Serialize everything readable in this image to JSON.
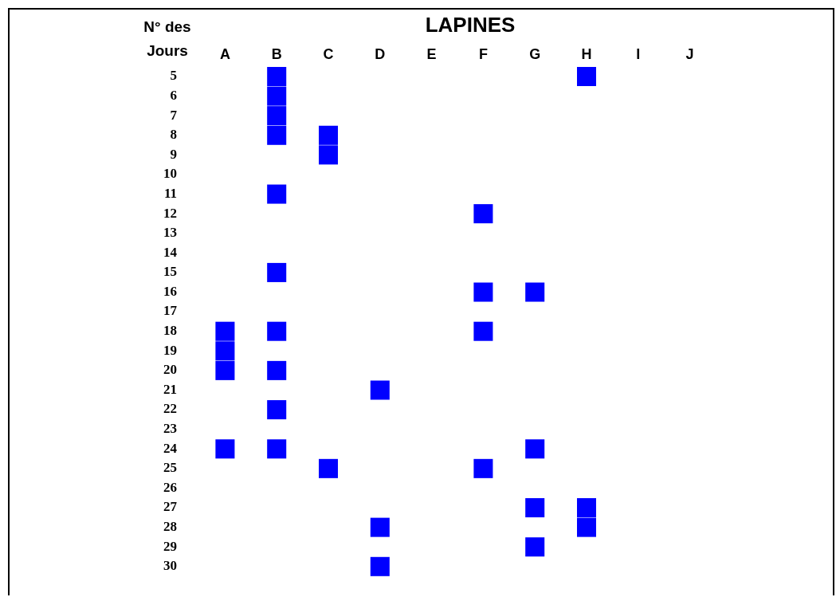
{
  "chart_data": {
    "type": "scatter",
    "title": "LAPINES",
    "ylabel": "N° des Jours",
    "marker": "square",
    "categories": [
      "A",
      "B",
      "C",
      "D",
      "E",
      "F",
      "G",
      "H",
      "I",
      "J"
    ],
    "ylim": [
      30,
      5
    ],
    "yticks": [
      5,
      6,
      7,
      8,
      9,
      10,
      11,
      12,
      13,
      14,
      15,
      16,
      17,
      18,
      19,
      20,
      21,
      22,
      23,
      24,
      25,
      26,
      27,
      28,
      29,
      30
    ],
    "series": [
      {
        "color": "#0000ff",
        "x": [
          "A",
          "A",
          "A",
          "A",
          "B",
          "B",
          "B",
          "B",
          "B",
          "B",
          "B",
          "B",
          "B",
          "B",
          "C",
          "C",
          "C",
          "D",
          "D",
          "D",
          "F",
          "F",
          "F",
          "F",
          "G",
          "G",
          "G",
          "G",
          "H",
          "H",
          "H"
        ],
        "values": [
          18,
          19,
          20,
          24,
          5,
          6,
          7,
          8,
          11,
          15,
          18,
          20,
          22,
          24,
          8,
          9,
          25,
          21,
          28,
          30,
          12,
          16,
          18,
          25,
          16,
          24,
          27,
          29,
          5,
          27,
          28
        ]
      }
    ]
  }
}
